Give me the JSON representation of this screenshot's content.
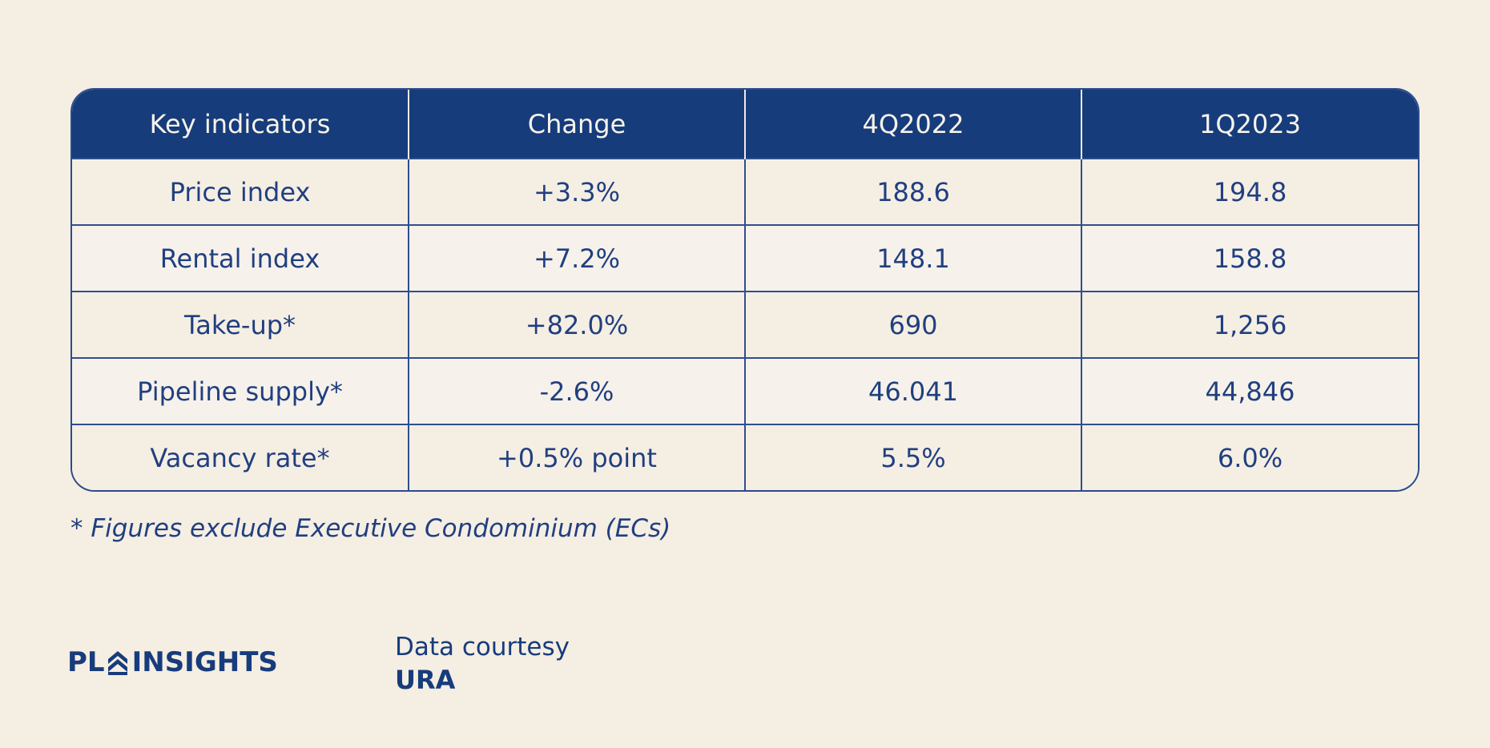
{
  "table": {
    "headers": [
      "Key indicators",
      "Change",
      "4Q2022",
      "1Q2023"
    ],
    "rows": [
      [
        "Price index",
        "+3.3%",
        "188.6",
        "194.8"
      ],
      [
        "Rental index",
        "+7.2%",
        "148.1",
        "158.8"
      ],
      [
        "Take-up*",
        "+82.0%",
        "690",
        "1,256"
      ],
      [
        "Pipeline supply*",
        "-2.6%",
        "46.041",
        "44,846"
      ],
      [
        "Vacancy rate*",
        "+0.5% point",
        "5.5%",
        "6.0%"
      ]
    ]
  },
  "footnote": "* Figures exclude Executive Condominium (ECs)",
  "logo": {
    "left": "PL",
    "right": "INSIGHTS",
    "icon": "chevron-stack-logo-icon"
  },
  "courtesy": {
    "label": "Data courtesy",
    "source": "URA"
  },
  "colors": {
    "background": "#f5eee3",
    "header": "#163c7b",
    "text": "#173c7c",
    "border": "#2f4f8d"
  }
}
